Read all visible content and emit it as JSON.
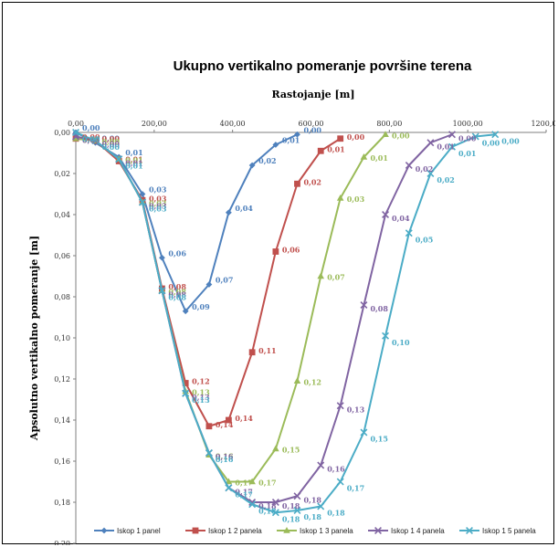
{
  "chart_data": {
    "type": "line",
    "title": "Ukupno vertikalno pomeranje površine terena",
    "xlabel": "Rastojanje [m]",
    "ylabel": "Apsolutno vertikalno pomeranje [m]",
    "xlim": [
      0,
      1200
    ],
    "ylim": [
      0,
      0.2
    ],
    "y_inverted": true,
    "x_axis_position": "top",
    "x_ticks": [
      "0,00",
      "200,00",
      "400,00",
      "600,00",
      "800,00",
      "1000,00",
      "1200,00"
    ],
    "y_ticks": [
      "0,00",
      "0,02",
      "0,04",
      "0,06",
      "0,08",
      "0,10",
      "0,12",
      "0,14",
      "0,16",
      "0,18",
      "0,20"
    ],
    "grid": false,
    "legend_position": "bottom",
    "series": [
      {
        "name": "Iskop 1 panel",
        "color": "#4F81BD",
        "marker": "diamond",
        "x": [
          0,
          50,
          110,
          170,
          220,
          280,
          340,
          390,
          450,
          510,
          565
        ],
        "y": [
          0.0,
          0.005,
          0.012,
          0.03,
          0.061,
          0.087,
          0.074,
          0.039,
          0.016,
          0.006,
          0.001
        ],
        "labels": [
          "0,00",
          "0,00",
          "0,01",
          "0,03",
          "0,06",
          "0,09",
          "0,07",
          "0,04",
          "0,02",
          "0,01",
          "0,00"
        ]
      },
      {
        "name": "Iskop 1 2 panela",
        "color": "#C0504D",
        "marker": "square",
        "x": [
          0,
          50,
          110,
          170,
          220,
          280,
          340,
          390,
          450,
          510,
          565,
          625,
          675
        ],
        "y": [
          0.003,
          0.004,
          0.014,
          0.033,
          0.076,
          0.122,
          0.143,
          0.14,
          0.107,
          0.058,
          0.025,
          0.009,
          0.003
        ],
        "labels": [
          "0,00",
          "0,00",
          "0,01",
          "0,03",
          "0,08",
          "0,12",
          "0,14",
          "0,14",
          "0,11",
          "0,06",
          "0,02",
          "0,01",
          "0,00"
        ]
      },
      {
        "name": "Iskop 1 3 panela",
        "color": "#9BBB59",
        "marker": "triangle",
        "x": [
          0,
          50,
          110,
          170,
          220,
          280,
          340,
          390,
          450,
          510,
          565,
          625,
          675,
          735,
          790
        ],
        "y": [
          0.003,
          0.004,
          0.013,
          0.034,
          0.077,
          0.126,
          0.157,
          0.17,
          0.17,
          0.154,
          0.121,
          0.07,
          0.032,
          0.012,
          0.001
        ],
        "labels": [
          "0,00",
          "0,00",
          "0,01",
          "0,03",
          "0,08",
          "0,13",
          "0,16",
          "0,17",
          "0,17",
          "0,15",
          "0,12",
          "0,07",
          "0,03",
          "0,01",
          "0,00"
        ]
      },
      {
        "name": "Iskop 1 4 panela",
        "color": "#8064A2",
        "marker": "x",
        "x": [
          0,
          50,
          110,
          170,
          220,
          280,
          340,
          390,
          450,
          510,
          565,
          625,
          675,
          735,
          790,
          850,
          905,
          960
        ],
        "y": [
          0.002,
          0.004,
          0.013,
          0.034,
          0.077,
          0.127,
          0.156,
          0.173,
          0.18,
          0.18,
          0.177,
          0.162,
          0.133,
          0.084,
          0.04,
          0.016,
          0.005,
          0.001
        ],
        "labels": [
          "0,00",
          "0,00",
          "0,01",
          "0,03",
          "0,08",
          "0,13",
          "0,16",
          "0,17",
          "0,18",
          "0,18",
          "0,18",
          "0,16",
          "0,13",
          "0,08",
          "0,04",
          "0,02",
          "0,01",
          "0,00"
        ]
      },
      {
        "name": "Iskop 1 5 panela",
        "color": "#4BACC6",
        "marker": "x",
        "x": [
          0,
          50,
          110,
          170,
          220,
          280,
          340,
          390,
          450,
          510,
          565,
          625,
          675,
          735,
          790,
          850,
          905,
          960,
          1020,
          1070
        ],
        "y": [
          0.0,
          0.004,
          0.013,
          0.034,
          0.077,
          0.127,
          0.156,
          0.173,
          0.181,
          0.185,
          0.184,
          0.182,
          0.17,
          0.146,
          0.099,
          0.049,
          0.02,
          0.007,
          0.002,
          0.001
        ],
        "labels": [
          "0,00",
          "0,00",
          "0,01",
          "0,03",
          "0,08",
          "0,13",
          "0,16",
          "0,17",
          "0,18",
          "0,18",
          "0,18",
          "0,18",
          "0,17",
          "0,15",
          "0,10",
          "0,05",
          "0,02",
          "0,01",
          "0,00",
          "0,00"
        ]
      }
    ]
  }
}
